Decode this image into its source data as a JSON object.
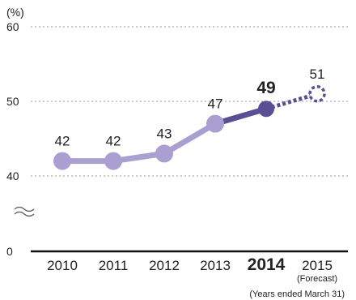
{
  "chart_data": {
    "type": "line",
    "unit_label": "(%)",
    "yticks": [
      40,
      50,
      60
    ],
    "zero_tick": "0",
    "axis_break": true,
    "grid": true,
    "categories": [
      "2010",
      "2011",
      "2012",
      "2013",
      "2014",
      "2015"
    ],
    "category_sub": [
      "",
      "",
      "",
      "",
      "",
      "(Forecast)"
    ],
    "values": [
      42,
      42,
      43,
      47,
      49,
      51
    ],
    "value_labels": [
      "42",
      "42",
      "43",
      "47",
      "49",
      "51"
    ],
    "highlight_index": 4,
    "forecast_index": 5,
    "footnote": "(Years ended March 31)",
    "colors": {
      "light_line": "#a99fd0",
      "dark_line": "#5a4f94",
      "axis": "#111111",
      "grid": "#9a9a9a"
    }
  }
}
